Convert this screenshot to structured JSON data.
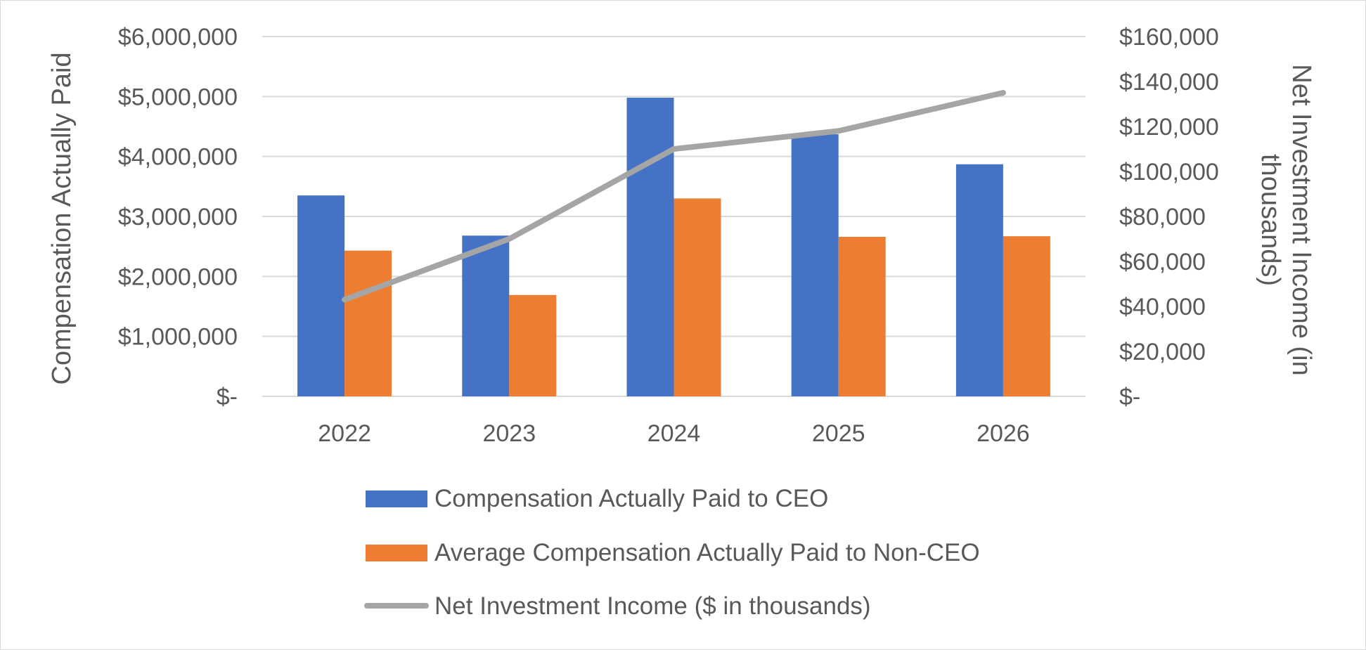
{
  "chart_data": {
    "type": "bar",
    "categories": [
      "2022",
      "2023",
      "2024",
      "2025",
      "2026"
    ],
    "series": [
      {
        "name": "Compensation Actually Paid to CEO",
        "kind": "bar",
        "axis": "left",
        "color": "#4472C4",
        "values": [
          3350000,
          2680000,
          4980000,
          4370000,
          3870000
        ]
      },
      {
        "name": "Average Compensation Actually Paid to Non-CEO",
        "kind": "bar",
        "axis": "left",
        "color": "#ED7D31",
        "values": [
          2430000,
          1690000,
          3300000,
          2660000,
          2670000
        ]
      },
      {
        "name": "Net Investment Income ($ in thousands)",
        "kind": "line",
        "axis": "right",
        "color": "#A5A5A5",
        "values": [
          43000,
          70000,
          110000,
          118000,
          135000
        ]
      }
    ],
    "ylabel": "Compensation Actually Paid",
    "ylabel_right_lines": [
      "Net Investment Income (in",
      "thousands)"
    ],
    "ylim": [
      0,
      6000000
    ],
    "ylim_right": [
      0,
      160000
    ],
    "yticks": [
      "$-",
      "$1,000,000",
      "$2,000,000",
      "$3,000,000",
      "$4,000,000",
      "$5,000,000",
      "$6,000,000"
    ],
    "yticks_right": [
      "$-",
      "$20,000",
      "$40,000",
      "$60,000",
      "$80,000",
      "$100,000",
      "$120,000",
      "$140,000",
      "$160,000"
    ],
    "grid": true,
    "legend_position": "bottom"
  }
}
